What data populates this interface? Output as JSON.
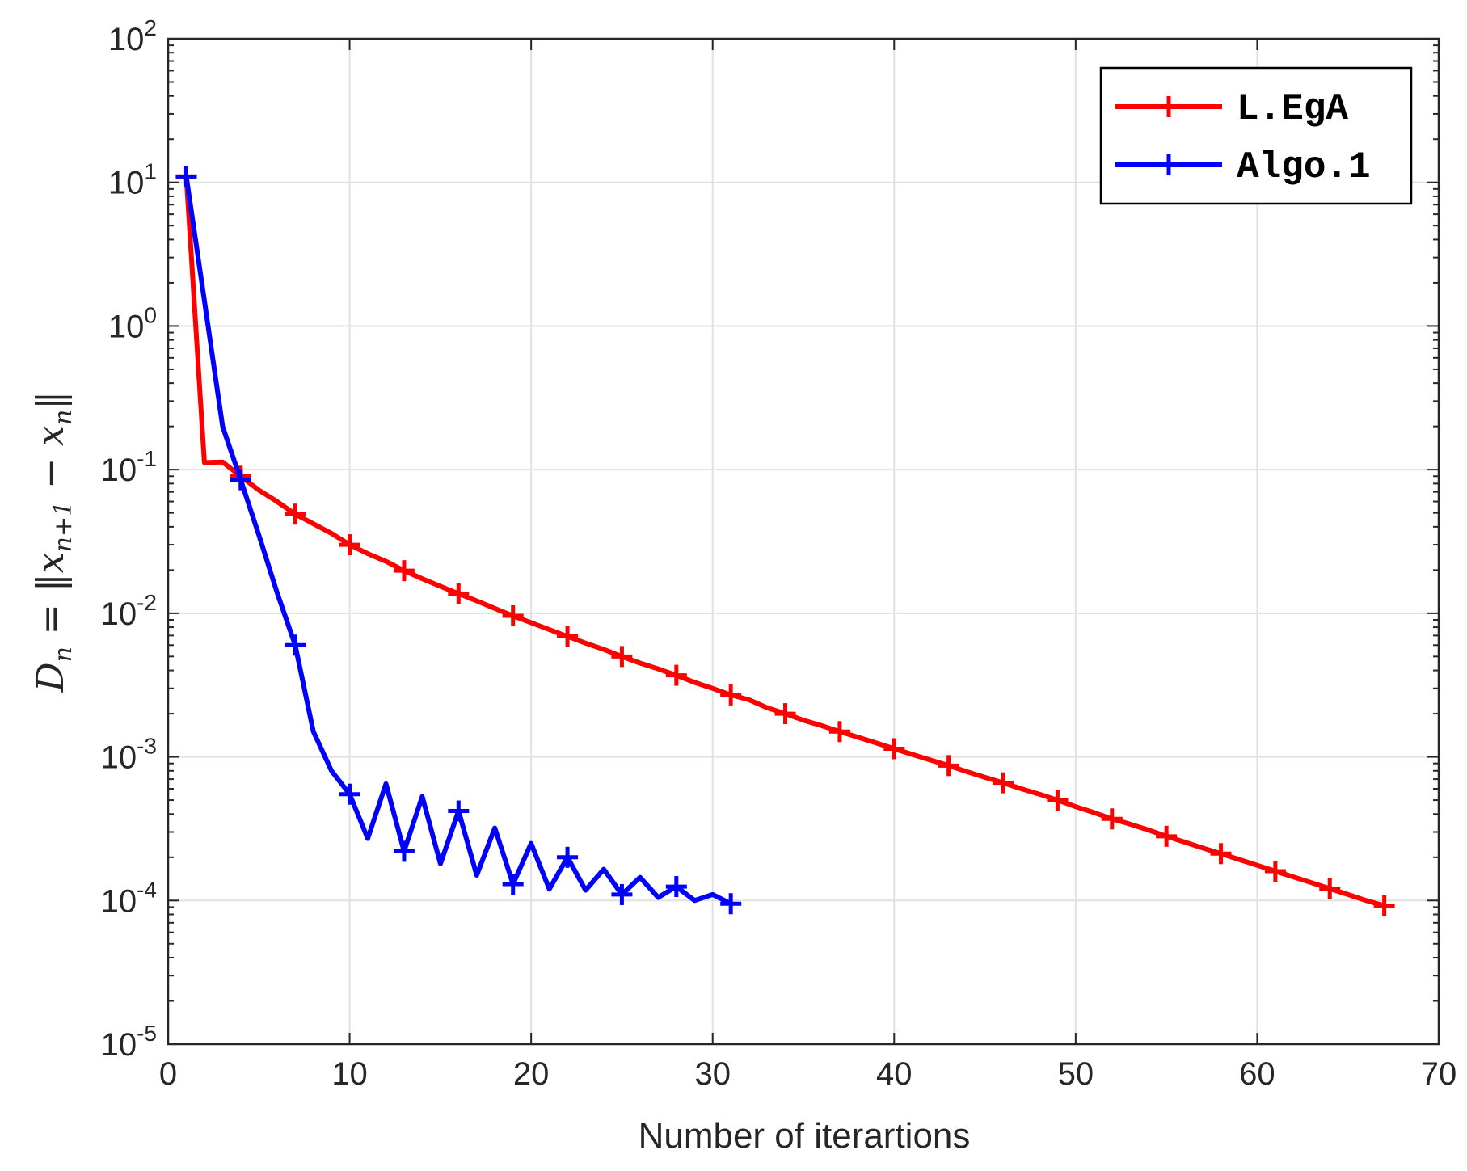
{
  "chart_data": {
    "type": "line",
    "xlabel": "Number of iterartions",
    "ylabel": "D_n = ||x_{n+1} − x_n||",
    "xlim": [
      0,
      70
    ],
    "ylim": [
      1e-05,
      100
    ],
    "yscale": "log",
    "grid": true,
    "legend_position": "top-right",
    "x_ticks": [
      "0",
      "10",
      "20",
      "30",
      "40",
      "50",
      "60",
      "70"
    ],
    "y_ticks": [
      {
        "base": "10",
        "exp": "-5"
      },
      {
        "base": "10",
        "exp": "-4"
      },
      {
        "base": "10",
        "exp": "-3"
      },
      {
        "base": "10",
        "exp": "-2"
      },
      {
        "base": "10",
        "exp": "-1"
      },
      {
        "base": "10",
        "exp": "0"
      },
      {
        "base": "10",
        "exp": "1"
      },
      {
        "base": "10",
        "exp": "2"
      }
    ],
    "series": [
      {
        "name": "L.EgA",
        "color": "#ff0000",
        "marker": "+",
        "marker_every": 3,
        "x": [
          1,
          2,
          3,
          4,
          5,
          6,
          7,
          8,
          9,
          10,
          11,
          12,
          13,
          14,
          15,
          16,
          17,
          18,
          19,
          20,
          21,
          22,
          23,
          24,
          25,
          26,
          27,
          28,
          29,
          30,
          31,
          32,
          33,
          34,
          35,
          36,
          37,
          38,
          39,
          40,
          41,
          42,
          43,
          44,
          45,
          46,
          47,
          48,
          49,
          50,
          51,
          52,
          53,
          54,
          55,
          56,
          57,
          58,
          59,
          60,
          61,
          62,
          63,
          64,
          65,
          66,
          67
        ],
        "y": [
          11,
          0.112,
          0.113,
          0.09,
          0.072,
          0.06,
          0.049,
          0.042,
          0.036,
          0.03,
          0.026,
          0.023,
          0.0198,
          0.0174,
          0.0154,
          0.0137,
          0.0122,
          0.0108,
          0.0096,
          0.0086,
          0.0077,
          0.0069,
          0.0062,
          0.0056,
          0.005,
          0.0045,
          0.0041,
          0.0037,
          0.0033,
          0.003,
          0.0027,
          0.0025,
          0.0022,
          0.002,
          0.0018,
          0.00165,
          0.0015,
          0.00137,
          0.00125,
          0.00114,
          0.00104,
          0.00095,
          0.00087,
          0.00079,
          0.00072,
          0.00066,
          0.0006,
          0.00055,
          0.0005,
          0.00045,
          0.00041,
          0.00037,
          0.00034,
          0.00031,
          0.00028,
          0.000255,
          0.000232,
          0.000212,
          0.000193,
          0.000176,
          0.00016,
          0.000146,
          0.000133,
          0.000121,
          0.00011,
          0.0001,
          9.2e-05
        ]
      },
      {
        "name": "Algo.1",
        "color": "#0000ff",
        "marker": "+",
        "marker_every": 3,
        "x": [
          1,
          2,
          3,
          4,
          5,
          6,
          7,
          8,
          9,
          10,
          11,
          12,
          13,
          14,
          15,
          16,
          17,
          18,
          19,
          20,
          21,
          22,
          23,
          24,
          25,
          26,
          27,
          28,
          29,
          30,
          31
        ],
        "y": [
          11,
          1.5,
          0.2,
          0.085,
          0.035,
          0.014,
          0.006,
          0.0015,
          0.0008,
          0.00055,
          0.00027,
          0.00065,
          0.00022,
          0.00053,
          0.00018,
          0.00042,
          0.00015,
          0.00032,
          0.00013,
          0.00025,
          0.00012,
          0.0002,
          0.000118,
          0.000165,
          0.00011,
          0.000145,
          0.000105,
          0.000125,
          0.0001,
          0.00011,
          9.5e-05
        ]
      }
    ]
  }
}
